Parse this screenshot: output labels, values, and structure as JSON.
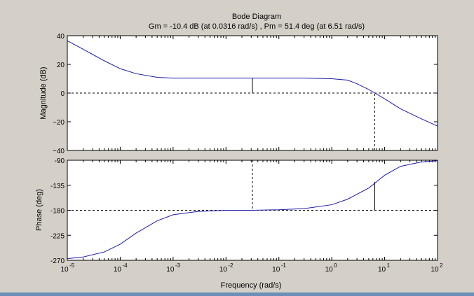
{
  "title": "Bode Diagram",
  "subtitle": "Gm = -10.4 dB (at 0.0316 rad/s) ,  Pm = 51.4 deg (at 6.51 rad/s)",
  "colors": {
    "figure_bg": "#d4d0c8",
    "axes_bg": "#ffffff",
    "curve": "#1a1aa8",
    "bottom_bar": "#6c8fb8"
  },
  "chart_data": [
    {
      "type": "line",
      "name": "magnitude",
      "ylabel": "Magnitude (dB)",
      "xlabel": "",
      "xscale": "log",
      "xlim": [
        1e-05,
        100
      ],
      "ylim": [
        -40,
        40
      ],
      "yticks": [
        "40",
        "20",
        "0",
        "−20",
        "−40"
      ],
      "ytick_values": [
        40,
        20,
        0,
        -20,
        -40
      ],
      "grid": false,
      "series": [
        {
          "x": [
            1e-05,
            2e-05,
            5e-05,
            0.0001,
            0.0002,
            0.0005,
            0.001,
            0.003,
            0.01,
            0.0316,
            0.1,
            0.3,
            1,
            2,
            3,
            5,
            6.51,
            10,
            20,
            50,
            100
          ],
          "y": [
            36.5,
            30.5,
            22.5,
            17,
            13.5,
            11,
            10.4,
            10.4,
            10.4,
            10.4,
            10.4,
            10.4,
            10,
            9,
            6.5,
            2.5,
            0,
            -4,
            -11,
            -18,
            -23
          ]
        }
      ],
      "reference_lines": [
        {
          "axis": "y",
          "value": 0
        }
      ],
      "markers": [
        {
          "x": 0.0316,
          "from": 0,
          "to": 10.4,
          "label": "Gm"
        },
        {
          "x": 6.51,
          "from": -40,
          "to": 0,
          "label": "Pm frequency"
        }
      ]
    },
    {
      "type": "line",
      "name": "phase",
      "ylabel": "Phase (deg)",
      "xlabel": "Frequency  (rad/s)",
      "xscale": "log",
      "xlim": [
        1e-05,
        100
      ],
      "ylim": [
        -270,
        -90
      ],
      "yticks": [
        "-90",
        "-135",
        "-180",
        "-225",
        "-270"
      ],
      "ytick_values": [
        -90,
        -135,
        -180,
        -225,
        -270
      ],
      "xticks": [
        {
          "base": "10",
          "exp": "-5"
        },
        {
          "base": "10",
          "exp": "-4"
        },
        {
          "base": "10",
          "exp": "-3"
        },
        {
          "base": "10",
          "exp": "-2"
        },
        {
          "base": "10",
          "exp": "-1"
        },
        {
          "base": "10",
          "exp": "0"
        },
        {
          "base": "10",
          "exp": "1"
        },
        {
          "base": "10",
          "exp": "2"
        }
      ],
      "grid": false,
      "series": [
        {
          "x": [
            1e-05,
            2e-05,
            5e-05,
            0.0001,
            0.0002,
            0.0005,
            0.001,
            0.003,
            0.01,
            0.0316,
            0.1,
            0.3,
            1,
            2,
            5,
            10,
            20,
            50,
            100
          ],
          "y": [
            -267,
            -264,
            -255,
            -241,
            -221,
            -199,
            -188,
            -182,
            -180,
            -180,
            -179,
            -177,
            -170,
            -160,
            -140,
            -117,
            -101,
            -93,
            -91
          ]
        }
      ],
      "reference_lines": [
        {
          "axis": "y",
          "value": -180
        }
      ],
      "markers": [
        {
          "x": 0.0316,
          "from": -90,
          "to": -180,
          "label": "Gm frequency"
        },
        {
          "x": 6.51,
          "from": -180,
          "to": -128.6,
          "label": "Pm"
        }
      ]
    }
  ]
}
